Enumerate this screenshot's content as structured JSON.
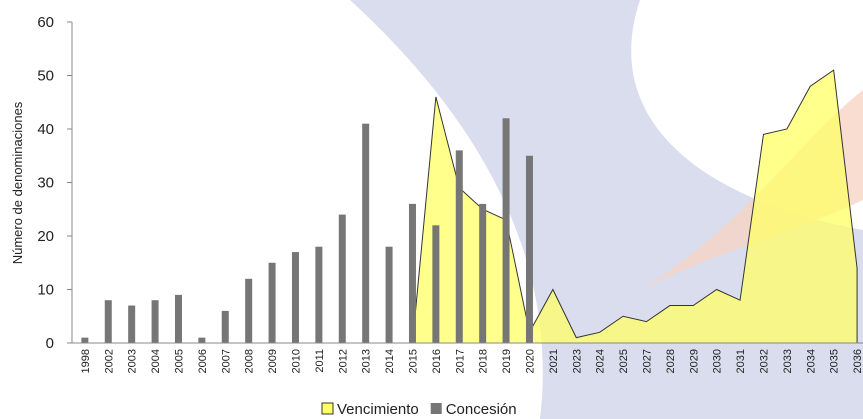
{
  "chart_data": {
    "type": "bar",
    "y_label": "Número de denominaciones",
    "categories": [
      "1998",
      "2002",
      "2003",
      "2004",
      "2005",
      "2006",
      "2007",
      "2008",
      "2009",
      "2010",
      "2011",
      "2012",
      "2013",
      "2014",
      "2015",
      "2016",
      "2017",
      "2018",
      "2019",
      "2020",
      "2021",
      "2023",
      "2024",
      "2025",
      "2027",
      "2028",
      "2029",
      "2030",
      "2031",
      "2032",
      "2033",
      "2034",
      "2035",
      "2036"
    ],
    "series": [
      {
        "name": "Vencimiento",
        "type": "area",
        "color": "#ffff66",
        "values": [
          null,
          null,
          null,
          null,
          null,
          null,
          null,
          null,
          null,
          null,
          null,
          null,
          null,
          null,
          0,
          46,
          29,
          25,
          23,
          2,
          10,
          1,
          2,
          5,
          4,
          7,
          7,
          10,
          8,
          39,
          40,
          48,
          51,
          14
        ]
      },
      {
        "name": "Concesión",
        "type": "bar",
        "color": "#767676",
        "values": [
          1,
          8,
          7,
          8,
          9,
          1,
          6,
          12,
          15,
          17,
          18,
          24,
          41,
          18,
          26,
          22,
          36,
          26,
          42,
          35,
          null,
          null,
          null,
          null,
          null,
          null,
          null,
          null,
          null,
          null,
          null,
          null,
          null,
          null
        ]
      }
    ],
    "ylim": [
      0,
      60
    ],
    "yticks": [
      0,
      10,
      20,
      30,
      40,
      50,
      60
    ]
  }
}
